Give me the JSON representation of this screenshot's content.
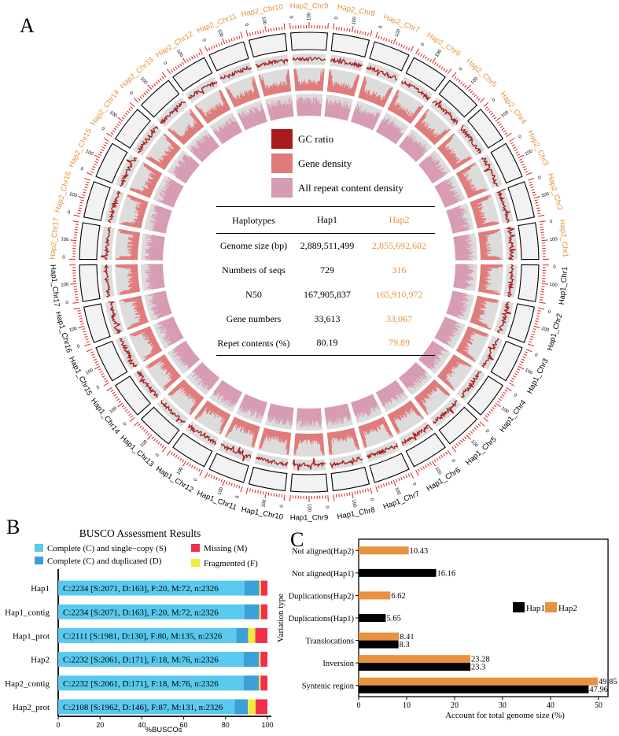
{
  "panels": {
    "a": "A",
    "b": "B",
    "c": "C"
  },
  "circos": {
    "hap1_chromosomes": [
      "Hap1_Chr1",
      "Hap1_Chr2",
      "Hap1_Chr3",
      "Hap1_Chr4",
      "Hap1_Chr5",
      "Hap1_Chr6",
      "Hap1_Chr7",
      "Hap1_Chr8",
      "Hap1_Chr9",
      "Hap1_Chr10",
      "Hap1_Chr11",
      "Hap1_Chr12",
      "Hap1_Chr13",
      "Hap1_Chr14",
      "Hap1_Chr15",
      "Hap1_Chr16",
      "Hap1_Chr17"
    ],
    "hap2_chromosomes": [
      "Hap2_Chr1",
      "Hap2_Chr2",
      "Hap2_Chr3",
      "Hap2_Chr4",
      "Hap2_Chr5",
      "Hap2_Chr6",
      "Hap2_Chr7",
      "Hap2_Chr8",
      "Hap2_Chr9",
      "Hap2_Chr10",
      "Hap2_Chr11",
      "Hap2_Chr12",
      "Hap2_Chr13",
      "Hap2_Chr14",
      "Hap2_Chr15",
      "Hap2_Chr16",
      "Hap2_Chr17"
    ],
    "tick_zero": "0",
    "tick_hundred": "100",
    "legend": [
      {
        "label": "GC ratio",
        "color": "#a81c1c"
      },
      {
        "label": "Gene density",
        "color": "#e07b7b"
      },
      {
        "label": "All repeat content density",
        "color": "#d79bb3"
      }
    ],
    "colors": {
      "hap1_label": "#000000",
      "hap2_label": "#e8923f",
      "ticks": "#e02020",
      "track_bg": "#dcdcdc"
    }
  },
  "stats_table": {
    "headers": [
      "Haplotypes",
      "Hap1",
      "Hap2"
    ],
    "rows": [
      {
        "label": "Genome size (bp)",
        "hap1": "2,889,511,499",
        "hap2": "2,855,692,602"
      },
      {
        "label": "Numbers of seqs",
        "hap1": "729",
        "hap2": "316"
      },
      {
        "label": "N50",
        "hap1": "167,905,837",
        "hap2": "165,910,972"
      },
      {
        "label": "Gene numbers",
        "hap1": "33,613",
        "hap2": "33,067"
      },
      {
        "label": "Repet contents (%)",
        "hap1": "80.19",
        "hap2": "79.89"
      }
    ]
  },
  "chart_data": [
    {
      "type": "bar",
      "title": "BUSCO Assessment Results",
      "xlabel": "%BUSCOs",
      "xlim": [
        0,
        100
      ],
      "xticks": [
        0,
        20,
        40,
        60,
        80,
        100
      ],
      "legend": [
        {
          "label": "Complete (C) and single−copy (S)",
          "color": "#59c9ee"
        },
        {
          "label": "Complete (C) and duplicated (D)",
          "color": "#3d9fd9"
        },
        {
          "label": "Missing (M)",
          "color": "#f0304a"
        },
        {
          "label": "Fragmented (F)",
          "color": "#f0e940"
        }
      ],
      "categories": [
        "Hap1",
        "Hap1_contig",
        "Hap1_prot",
        "Hap2",
        "Hap2_contig",
        "Hap2_prot"
      ],
      "series": [
        {
          "name": "S",
          "values": [
            89.04,
            89.04,
            85.17,
            88.61,
            88.61,
            84.35
          ]
        },
        {
          "name": "D",
          "values": [
            7.01,
            7.01,
            5.59,
            7.35,
            7.35,
            6.28
          ]
        },
        {
          "name": "F",
          "values": [
            0.86,
            0.86,
            3.44,
            0.77,
            0.77,
            3.74
          ]
        },
        {
          "name": "M",
          "values": [
            3.1,
            3.1,
            5.8,
            3.27,
            3.27,
            5.63
          ]
        }
      ],
      "bar_labels": [
        "C:2234 [S:2071, D:163], F:20, M:72, n:2326",
        "C:2234 [S:2071, D:163], F:20, M:72, n:2326",
        "C:2111 [S:1981, D:130], F:80, M:135, n:2326",
        "C:2232 [S:2061, D:171], F:18, M:76, n:2326",
        "C:2232 [S:2061, D:171], F:18, M:76, n:2326",
        "C:2108 [S:1962, D:146], F:87, M:131, n:2326"
      ]
    },
    {
      "type": "bar",
      "orientation": "horizontal",
      "xlabel": "Account for total genome size (%)",
      "ylabel": "Variation type",
      "xlim": [
        0,
        52
      ],
      "xticks": [
        0,
        10,
        20,
        30,
        40,
        50
      ],
      "categories": [
        "Not aligned(Hap2)",
        "Not aligned(Hap1)",
        "Duplications(Hap2)",
        "Duplications(Hap1)",
        "Translocations",
        "Inversion",
        "Syntenic region"
      ],
      "series": [
        {
          "name": "Hap1",
          "color": "#000000",
          "values": [
            null,
            16.16,
            null,
            5.65,
            8.3,
            23.3,
            47.96
          ]
        },
        {
          "name": "Hap2",
          "color": "#e8923f",
          "values": [
            10.43,
            null,
            6.62,
            null,
            8.41,
            23.28,
            49.85
          ]
        }
      ],
      "value_labels": {
        "Hap1": [
          null,
          "16.16",
          null,
          "5.65",
          "8.3",
          "23.3",
          "47.96"
        ],
        "Hap2": [
          "10.43",
          null,
          "6.62",
          null,
          "8.41",
          "23.28",
          "49.85"
        ]
      }
    }
  ]
}
